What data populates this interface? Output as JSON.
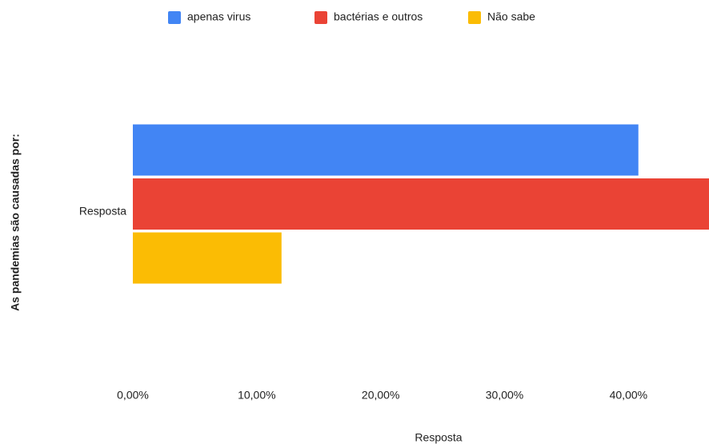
{
  "chart_data": {
    "type": "hbar",
    "categories": [
      "Resposta"
    ],
    "series": [
      {
        "name": "apenas virus",
        "color": "#4285f4",
        "values": [
          40.8
        ]
      },
      {
        "name": "bactérias e outros",
        "color": "#ea4335",
        "values": [
          46.5
        ]
      },
      {
        "name": "Não sabe",
        "color": "#fbbc04",
        "values": [
          12
        ]
      }
    ],
    "xlim": [
      0,
      46.5
    ],
    "xticks": [
      {
        "value": 0,
        "label": "0,00%"
      },
      {
        "value": 10,
        "label": "10,00%"
      },
      {
        "value": 20,
        "label": "20,00%"
      },
      {
        "value": 30,
        "label": "30,00%"
      },
      {
        "value": 40,
        "label": "40,00%"
      }
    ],
    "xlabel": "Resposta",
    "ylabel": "As pandemias são causadas por:",
    "legend": "top",
    "grid": false
  }
}
